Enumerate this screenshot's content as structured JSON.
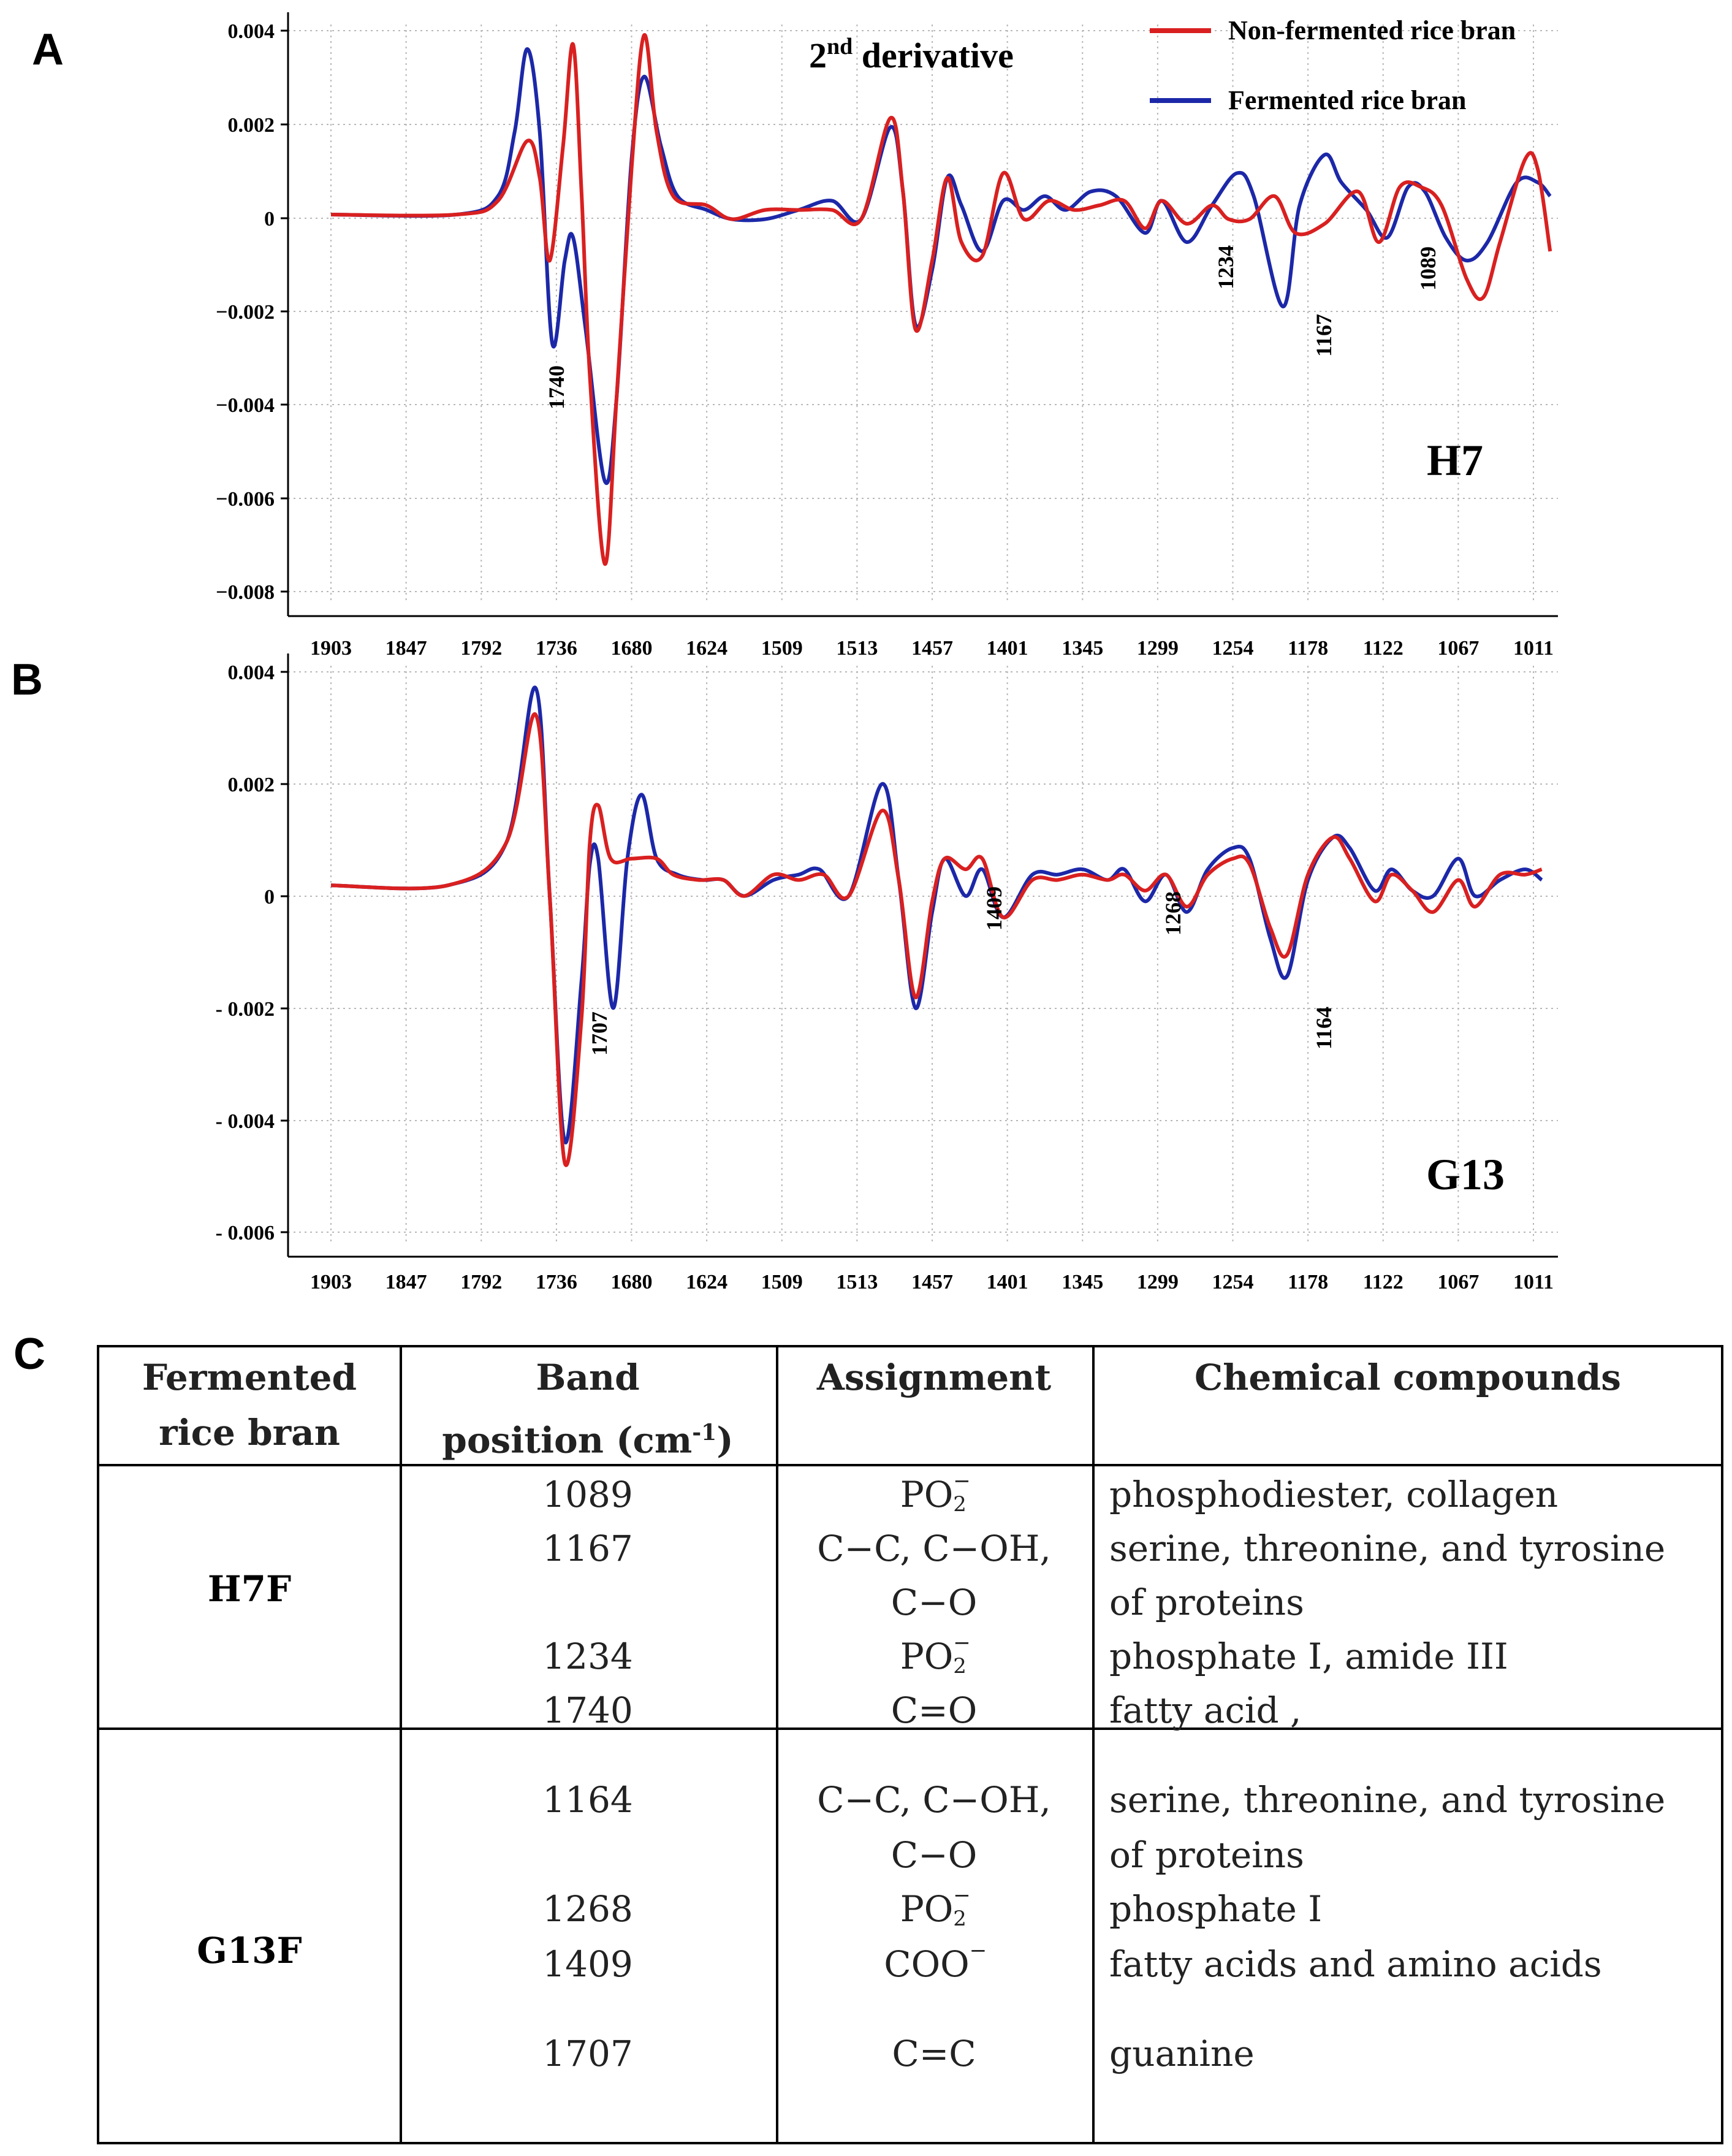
{
  "panels": {
    "a": "A",
    "b": "B",
    "c": "C"
  },
  "legend": {
    "non_fermented": "Non-fermented rice bran",
    "fermented": "Fermented rice bran"
  },
  "title": {
    "prefix": "2",
    "sup": "nd",
    "suffix": " derivative"
  },
  "colors": {
    "non_fermented": "#d92020",
    "fermented": "#1c28a8",
    "grid": "#b8b8b8"
  },
  "x_ticks": [
    "1903",
    "1847",
    "1792",
    "1736",
    "1680",
    "1624",
    "1509",
    "1513",
    "1457",
    "1401",
    "1345",
    "1299",
    "1254",
    "1178",
    "1122",
    "1067",
    "1011"
  ],
  "chart_data": [
    {
      "type": "line",
      "label": "H7",
      "x_ticks": [
        "1903",
        "1847",
        "1792",
        "1736",
        "1680",
        "1624",
        "1509",
        "1513",
        "1457",
        "1401",
        "1345",
        "1299",
        "1254",
        "1178",
        "1122",
        "1067",
        "1011"
      ],
      "y_ticks": [
        "0.004",
        "0.002",
        "0",
        "−0.002",
        "−0.004",
        "−0.006",
        "−0.008"
      ],
      "ylim": [
        -0.0082,
        0.004
      ],
      "grid": true,
      "legend_position": "top-right",
      "series": [
        {
          "name": "Non-fermented rice bran",
          "points": [
            [
              0,
              0
            ],
            [
              1.5,
              0
            ],
            [
              2.0,
              0.0003
            ],
            [
              2.35,
              0.0016
            ],
            [
              2.5,
              0.0008
            ],
            [
              2.62,
              -0.001
            ],
            [
              2.78,
              0.0015
            ],
            [
              2.9,
              0.0037
            ],
            [
              3.0,
              0.0005
            ],
            [
              3.1,
              -0.0035
            ],
            [
              3.28,
              -0.0076
            ],
            [
              3.42,
              -0.004
            ],
            [
              3.6,
              0.001
            ],
            [
              3.75,
              0.0039
            ],
            [
              3.9,
              0.0018
            ],
            [
              4.1,
              0.0004
            ],
            [
              4.5,
              0.0002
            ],
            [
              4.8,
              -0.0001
            ],
            [
              5.2,
              0.0001
            ],
            [
              5.6,
              0.0001
            ],
            [
              6.0,
              0.0001
            ],
            [
              6.35,
              -0.0001
            ],
            [
              6.7,
              0.0021
            ],
            [
              6.85,
              0.0005
            ],
            [
              7.0,
              -0.0025
            ],
            [
              7.2,
              -0.001
            ],
            [
              7.38,
              0.0008
            ],
            [
              7.55,
              -0.0006
            ],
            [
              7.8,
              -0.0009
            ],
            [
              8.05,
              0.0009
            ],
            [
              8.3,
              -0.0001
            ],
            [
              8.6,
              0.0003
            ],
            [
              8.9,
              0.0001
            ],
            [
              9.2,
              0.0002
            ],
            [
              9.5,
              0.0003
            ],
            [
              9.75,
              -0.0003
            ],
            [
              9.95,
              0.0003
            ],
            [
              10.25,
              -0.0002
            ],
            [
              10.55,
              0.0002
            ],
            [
              10.75,
              -0.0001
            ],
            [
              11.0,
              -0.0001
            ],
            [
              11.3,
              0.0004
            ],
            [
              11.55,
              -0.0004
            ],
            [
              11.9,
              -0.0002
            ],
            [
              12.3,
              0.0005
            ],
            [
              12.55,
              -0.0006
            ],
            [
              12.8,
              0.0006
            ],
            [
              13.05,
              0.0006
            ],
            [
              13.3,
              0.0002
            ],
            [
              13.6,
              -0.0014
            ],
            [
              13.8,
              -0.0018
            ],
            [
              14.0,
              -0.0006
            ],
            [
              14.3,
              0.0012
            ],
            [
              14.45,
              0.001
            ],
            [
              14.6,
              -0.0008
            ]
          ]
        },
        {
          "name": "Fermented rice bran",
          "points": [
            [
              0,
              0
            ],
            [
              1.5,
              0
            ],
            [
              2.0,
              0.0004
            ],
            [
              2.2,
              0.0018
            ],
            [
              2.35,
              0.0036
            ],
            [
              2.5,
              0.0018
            ],
            [
              2.65,
              -0.0028
            ],
            [
              2.8,
              -0.001
            ],
            [
              2.9,
              -0.0005
            ],
            [
              3.05,
              -0.0025
            ],
            [
              3.28,
              -0.0058
            ],
            [
              3.42,
              -0.004
            ],
            [
              3.6,
              0.0012
            ],
            [
              3.75,
              0.003
            ],
            [
              3.95,
              0.0015
            ],
            [
              4.15,
              0.0004
            ],
            [
              4.5,
              0.0001
            ],
            [
              4.8,
              -0.0001
            ],
            [
              5.2,
              -0.0001
            ],
            [
              5.6,
              0.0001
            ],
            [
              6.0,
              0.0003
            ],
            [
              6.35,
              -0.0001
            ],
            [
              6.7,
              0.0019
            ],
            [
              6.85,
              0.0005
            ],
            [
              7.0,
              -0.0024
            ],
            [
              7.2,
              -0.0012
            ],
            [
              7.38,
              0.0008
            ],
            [
              7.55,
              0.0002
            ],
            [
              7.8,
              -0.0008
            ],
            [
              8.05,
              0.0003
            ],
            [
              8.3,
              0.0001
            ],
            [
              8.55,
              0.0004
            ],
            [
              8.8,
              0.0001
            ],
            [
              9.1,
              0.0005
            ],
            [
              9.4,
              0.0004
            ],
            [
              9.75,
              -0.0004
            ],
            [
              9.95,
              0.0003
            ],
            [
              10.25,
              -0.0006
            ],
            [
              10.55,
              0.0002
            ],
            [
              10.85,
              0.0009
            ],
            [
              11.05,
              0.0004
            ],
            [
              11.4,
              -0.002
            ],
            [
              11.6,
              0.0002
            ],
            [
              11.9,
              0.0013
            ],
            [
              12.1,
              0.0007
            ],
            [
              12.4,
              0.0001
            ],
            [
              12.65,
              -0.0005
            ],
            [
              12.9,
              0.0006
            ],
            [
              13.1,
              0.0005
            ],
            [
              13.35,
              -0.0005
            ],
            [
              13.6,
              -0.001
            ],
            [
              13.85,
              -0.0006
            ],
            [
              14.2,
              0.0007
            ],
            [
              14.45,
              0.0007
            ],
            [
              14.6,
              0.0004
            ]
          ]
        }
      ],
      "annotations": [
        "1740",
        "1234",
        "1167",
        "1089"
      ]
    },
    {
      "type": "line",
      "label": "G13",
      "x_ticks": [
        "1903",
        "1847",
        "1792",
        "1736",
        "1680",
        "1624",
        "1509",
        "1513",
        "1457",
        "1401",
        "1345",
        "1299",
        "1254",
        "1178",
        "1122",
        "1067",
        "1011"
      ],
      "y_ticks": [
        "0.004",
        "0.002",
        "0",
        "- 0.002",
        "- 0.004",
        "- 0.006"
      ],
      "ylim": [
        -0.0065,
        0.004
      ],
      "grid": true,
      "series": [
        {
          "name": "Non-fermented rice bran",
          "points": [
            [
              0,
              0
            ],
            [
              1.4,
              0
            ],
            [
              2.1,
              0.0008
            ],
            [
              2.45,
              0.0032
            ],
            [
              2.62,
              -0.0002
            ],
            [
              2.8,
              -0.0052
            ],
            [
              3.0,
              -0.0025
            ],
            [
              3.1,
              0.0008
            ],
            [
              3.2,
              0.0015
            ],
            [
              3.35,
              0.0005
            ],
            [
              3.6,
              0.0005
            ],
            [
              3.9,
              0.0005
            ],
            [
              4.1,
              0.0002
            ],
            [
              4.4,
              0.0001
            ],
            [
              4.7,
              0.0001
            ],
            [
              4.95,
              -0.0002
            ],
            [
              5.3,
              0.0002
            ],
            [
              5.6,
              0.0001
            ],
            [
              5.9,
              0.0002
            ],
            [
              6.2,
              -0.0002
            ],
            [
              6.6,
              0.0014
            ],
            [
              6.8,
              0.0001
            ],
            [
              7.0,
              -0.0021
            ],
            [
              7.2,
              -0.0003
            ],
            [
              7.35,
              0.0005
            ],
            [
              7.6,
              0.0003
            ],
            [
              7.8,
              0.0005
            ],
            [
              8.05,
              -0.0006
            ],
            [
              8.4,
              0.0001
            ],
            [
              8.7,
              0.0001
            ],
            [
              9.0,
              0.0002
            ],
            [
              9.3,
              0.0001
            ],
            [
              9.5,
              0.0002
            ],
            [
              9.75,
              -0.0001
            ],
            [
              10.0,
              0.0002
            ],
            [
              10.25,
              -0.0004
            ],
            [
              10.5,
              0.0002
            ],
            [
              10.8,
              0.0005
            ],
            [
              11.0,
              0.0004
            ],
            [
              11.25,
              -0.0008
            ],
            [
              11.45,
              -0.0013
            ],
            [
              11.7,
              0.0002
            ],
            [
              12.0,
              0.0009
            ],
            [
              12.2,
              0.0005
            ],
            [
              12.5,
              -0.0003
            ],
            [
              12.7,
              0.0002
            ],
            [
              12.95,
              -0.0001
            ],
            [
              13.2,
              -0.0005
            ],
            [
              13.5,
              0.0001
            ],
            [
              13.7,
              -0.0004
            ],
            [
              14.0,
              0.0002
            ],
            [
              14.3,
              0.0002
            ],
            [
              14.5,
              0.0003
            ]
          ]
        },
        {
          "name": "Fermented rice bran",
          "points": [
            [
              0,
              0
            ],
            [
              1.4,
              0
            ],
            [
              2.1,
              0.0008
            ],
            [
              2.45,
              0.0037
            ],
            [
              2.62,
              -0.0002
            ],
            [
              2.8,
              -0.0048
            ],
            [
              3.0,
              -0.0018
            ],
            [
              3.1,
              0.0004
            ],
            [
              3.2,
              0.0005
            ],
            [
              3.38,
              -0.0023
            ],
            [
              3.55,
              0.0005
            ],
            [
              3.72,
              0.0017
            ],
            [
              3.9,
              0.0005
            ],
            [
              4.15,
              0.0002
            ],
            [
              4.45,
              0.0001
            ],
            [
              4.7,
              0.0001
            ],
            [
              4.95,
              -0.0002
            ],
            [
              5.3,
              0.0001
            ],
            [
              5.6,
              0.0002
            ],
            [
              5.85,
              0.0003
            ],
            [
              6.2,
              -0.0002
            ],
            [
              6.6,
              0.0019
            ],
            [
              6.8,
              0.0001
            ],
            [
              7.0,
              -0.0023
            ],
            [
              7.2,
              -0.0005
            ],
            [
              7.35,
              0.0005
            ],
            [
              7.6,
              -0.0002
            ],
            [
              7.8,
              0.0003
            ],
            [
              8.05,
              -0.0006
            ],
            [
              8.4,
              0.0002
            ],
            [
              8.7,
              0.0002
            ],
            [
              9.0,
              0.0003
            ],
            [
              9.3,
              0.0001
            ],
            [
              9.5,
              0.0003
            ],
            [
              9.75,
              -0.0003
            ],
            [
              10.0,
              0.0002
            ],
            [
              10.25,
              -0.0005
            ],
            [
              10.5,
              0.0003
            ],
            [
              10.8,
              0.0007
            ],
            [
              11.0,
              0.0005
            ],
            [
              11.25,
              -0.001
            ],
            [
              11.45,
              -0.0017
            ],
            [
              11.7,
              0.0001
            ],
            [
              12.0,
              0.0009
            ],
            [
              12.2,
              0.0007
            ],
            [
              12.5,
              -0.0001
            ],
            [
              12.7,
              0.0003
            ],
            [
              12.95,
              -0.0001
            ],
            [
              13.2,
              -0.0002
            ],
            [
              13.5,
              0.0005
            ],
            [
              13.7,
              -0.0002
            ],
            [
              14.0,
              0.0001
            ],
            [
              14.3,
              0.0003
            ],
            [
              14.5,
              0.0001
            ]
          ]
        }
      ],
      "annotations": [
        "1707",
        "1409",
        "1268",
        "1164"
      ]
    }
  ],
  "table": {
    "headers": {
      "col1": [
        "Fermented",
        "rice bran"
      ],
      "col2_line1": "Band",
      "col2_line2": "position (cm",
      "col2_sup": "-1",
      "col2_close": ")",
      "col3": "Assignment",
      "col4": "Chemical compounds"
    },
    "groups": [
      {
        "name": "H7F",
        "rows": [
          {
            "band": "1089",
            "assign": "PO",
            "assign_sub": "2",
            "assign_sup": "−",
            "compound": "phosphodiester, collagen"
          },
          {
            "band": "1167",
            "assign": "C−C, C−OH,",
            "compound": "serine, threonine, and tyrosine"
          },
          {
            "band": "",
            "assign": "C−O",
            "compound": "of proteins"
          },
          {
            "band": "1234",
            "assign": "PO",
            "assign_sub": "2",
            "assign_sup": "−",
            "compound": "phosphate I, amide III"
          },
          {
            "band": "1740",
            "assign": "C=O",
            "compound": "fatty acid ,"
          }
        ]
      },
      {
        "name": "G13F",
        "rows": [
          {
            "band": "1164",
            "assign": "C−C, C−OH,",
            "compound": "serine, threonine, and tyrosine"
          },
          {
            "band": "",
            "assign": "C−O",
            "compound": "of proteins"
          },
          {
            "band": "1268",
            "assign": "PO",
            "assign_sub": "2",
            "assign_sup": "−",
            "compound": "phosphate I"
          },
          {
            "band": "1409",
            "assign": "COO",
            "assign_sup": "−",
            "compound": "fatty acids and amino acids"
          },
          {
            "band": "1707",
            "assign": "C=C",
            "compound": "guanine"
          }
        ]
      }
    ]
  }
}
